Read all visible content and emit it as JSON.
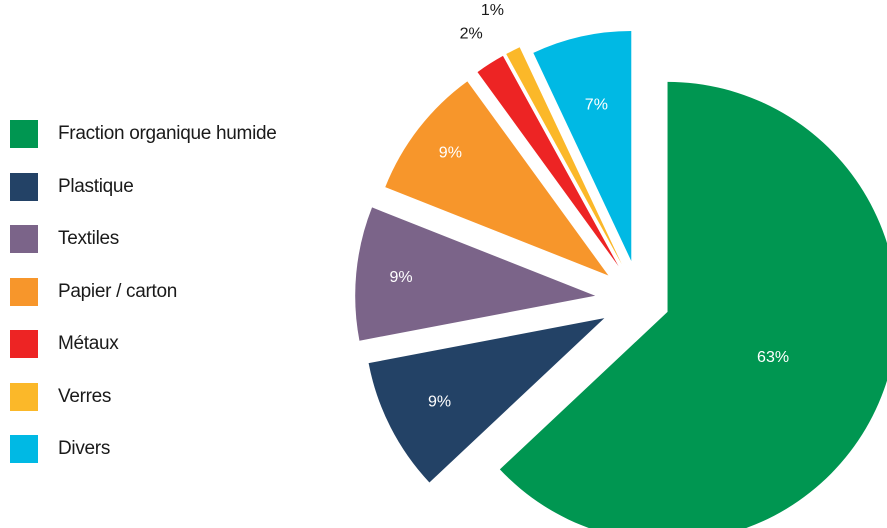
{
  "chart_data": {
    "type": "pie",
    "title": "",
    "legend_position": "left",
    "exploded": true,
    "start": "top",
    "direction": "clockwise",
    "slices": [
      {
        "name": "Fraction organique humide",
        "value": 63,
        "label": "63%",
        "color": "#009651",
        "label_color": "#ffffff"
      },
      {
        "name": "Plastique",
        "value": 9,
        "label": "9%",
        "color": "#234266",
        "label_color": "#ffffff"
      },
      {
        "name": "Textiles",
        "value": 9,
        "label": "9%",
        "color": "#7b6489",
        "label_color": "#ffffff"
      },
      {
        "name": "Papier / carton",
        "value": 9,
        "label": "9%",
        "color": "#f7962b",
        "label_color": "#ffffff"
      },
      {
        "name": "Métaux",
        "value": 2,
        "label": "2%",
        "color": "#ed2424",
        "label_color": "#1a1a1a"
      },
      {
        "name": "Verres",
        "value": 1,
        "label": "1%",
        "color": "#fbb829",
        "label_color": "#1a1a1a"
      },
      {
        "name": "Divers",
        "value": 7,
        "label": "7%",
        "color": "#00b9e4",
        "label_color": "#ffffff"
      }
    ]
  }
}
